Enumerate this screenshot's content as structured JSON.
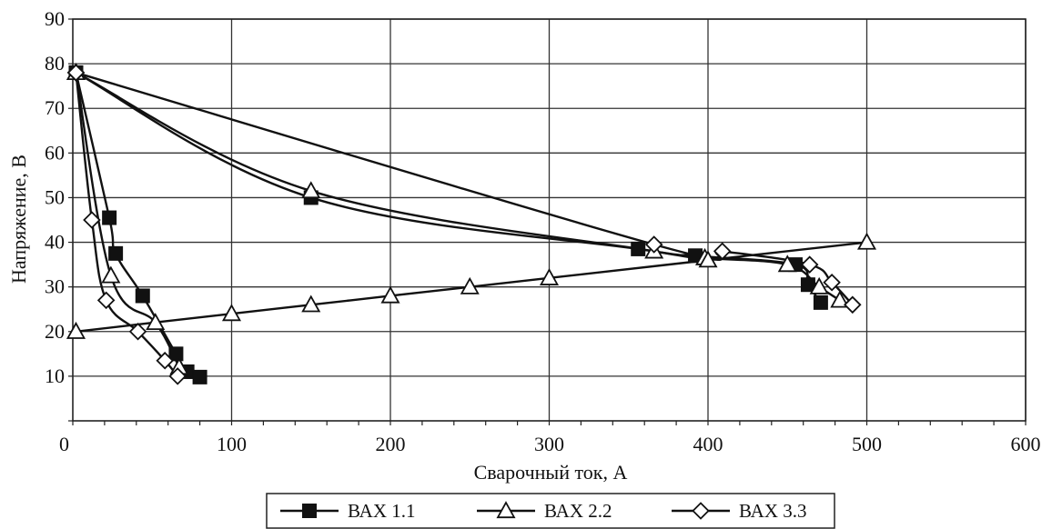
{
  "chart_data": {
    "type": "line",
    "title": "",
    "xlabel": "Сварочный ток, А",
    "ylabel": "Напряжение, В",
    "xlim": [
      0,
      600
    ],
    "ylim": [
      0,
      90
    ],
    "xticks": [
      "0",
      "100",
      "200",
      "300",
      "400",
      "500",
      "600"
    ],
    "yticks": [
      "10",
      "20",
      "30",
      "40",
      "50",
      "60",
      "70",
      "80",
      "90"
    ],
    "grid": true,
    "legend_position": "bottom",
    "series": [
      {
        "name": "ВАХ 1.1",
        "marker": "filled-square",
        "curves": [
          [
            [
              2,
              78
            ],
            [
              150,
              50
            ],
            [
              356,
              38.5
            ],
            [
              392,
              37
            ],
            [
              455,
              35
            ],
            [
              463,
              30.5
            ],
            [
              471,
              26.5
            ]
          ],
          [
            [
              2,
              78
            ],
            [
              23,
              45.5
            ],
            [
              27,
              37.5
            ],
            [
              44,
              28
            ],
            [
              65,
              15
            ],
            [
              72,
              11
            ],
            [
              80,
              9.8
            ]
          ]
        ]
      },
      {
        "name": "ВАХ 2.2",
        "marker": "open-triangle",
        "curves": [
          [
            [
              2,
              78
            ],
            [
              150,
              51.5
            ],
            [
              366,
              38
            ],
            [
              398,
              36.5
            ],
            [
              450,
              35
            ],
            [
              470,
              30
            ],
            [
              483,
              27
            ]
          ],
          [
            [
              2,
              78
            ],
            [
              24,
              32.5
            ],
            [
              52,
              22
            ],
            [
              67,
              12
            ]
          ],
          [
            [
              2,
              20
            ],
            [
              100,
              24
            ],
            [
              150,
              26
            ],
            [
              200,
              28
            ],
            [
              250,
              30
            ],
            [
              300,
              32
            ],
            [
              400,
              36
            ],
            [
              500,
              40
            ]
          ]
        ]
      },
      {
        "name": "ВАХ 3.3",
        "marker": "open-diamond",
        "curves": [
          [
            [
              2,
              78
            ],
            [
              366,
              39.5
            ],
            [
              409,
              38
            ],
            [
              464,
              35
            ],
            [
              478,
              31
            ],
            [
              491,
              26
            ]
          ],
          [
            [
              2,
              78
            ],
            [
              12,
              45
            ],
            [
              21,
              27
            ],
            [
              41,
              20
            ],
            [
              58,
              13.5
            ],
            [
              66,
              10
            ]
          ]
        ]
      }
    ]
  }
}
